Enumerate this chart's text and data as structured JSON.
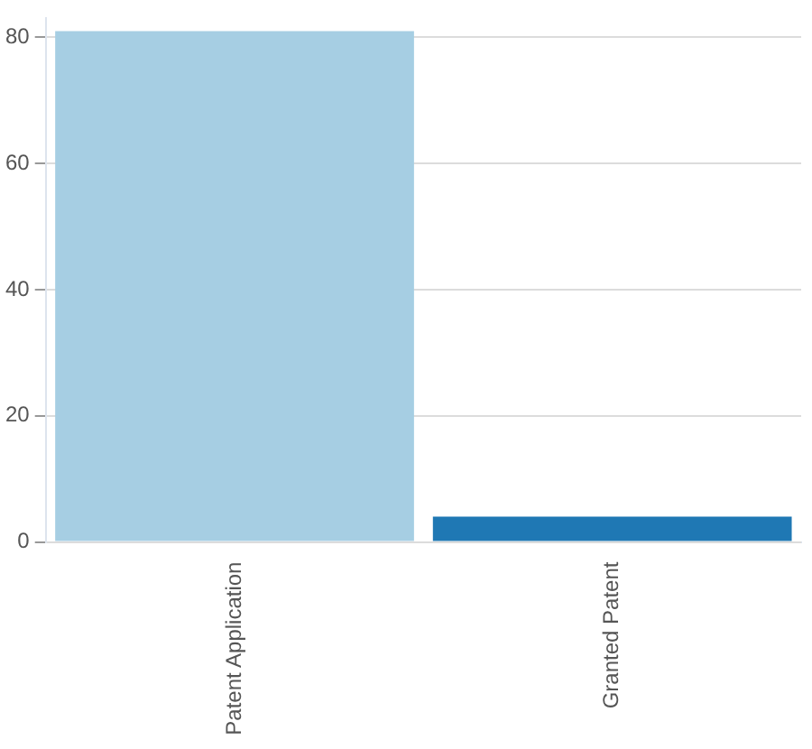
{
  "chart_data": {
    "type": "bar",
    "categories": [
      "Patent Application",
      "Granted Patent"
    ],
    "colors": [
      "#a6cee3",
      "#1f78b4"
    ],
    "values": [
      81,
      4
    ],
    "ylim": [
      0,
      83
    ],
    "yticks": [
      0,
      20,
      40,
      60,
      80
    ],
    "grid": "y",
    "legend": false
  }
}
